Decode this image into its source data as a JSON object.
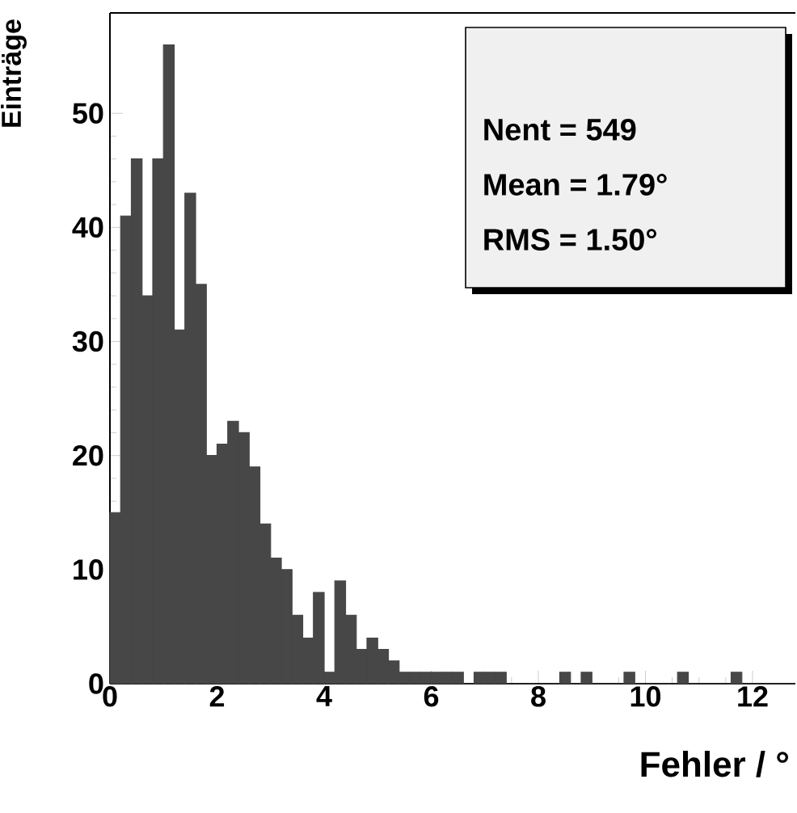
{
  "chart_data": {
    "type": "histogram",
    "xlabel": "Fehler / °",
    "ylabel": "Einträge",
    "bins": [
      0,
      0.2,
      0.4,
      0.6,
      0.8,
      1.0,
      1.2,
      1.4,
      1.6,
      1.8,
      2.0,
      2.2,
      2.4,
      2.6,
      2.8,
      3.0,
      3.2,
      3.4,
      3.6,
      3.8,
      4.0,
      4.2,
      4.4,
      4.6,
      4.8,
      5.0,
      5.2,
      5.4,
      5.6,
      5.8,
      6.0,
      6.2,
      6.4,
      6.6,
      6.8,
      7.0,
      7.2,
      7.4,
      7.6,
      7.8,
      8.0,
      8.2,
      8.4,
      8.6,
      8.8,
      9.0,
      9.2,
      9.4,
      9.6,
      9.8,
      10.0,
      10.2,
      10.4,
      10.6,
      10.8,
      11.0,
      11.2,
      11.4,
      11.6,
      11.8,
      12.0,
      12.2,
      12.4,
      12.6,
      12.8
    ],
    "values": [
      15,
      41,
      46,
      34,
      46,
      56,
      31,
      43,
      35,
      20,
      21,
      23,
      22,
      19,
      14,
      11,
      10,
      6,
      4,
      8,
      1,
      9,
      6,
      3,
      4,
      3,
      2,
      1,
      1,
      1,
      1,
      1,
      1,
      0,
      1,
      1,
      1,
      0,
      0,
      0,
      0,
      0,
      1,
      0,
      1,
      0,
      0,
      0,
      1,
      0,
      0,
      0,
      0,
      1,
      0,
      0,
      0,
      0,
      1,
      0,
      0,
      0,
      0,
      0
    ],
    "color": "#474747",
    "xlim": [
      0,
      12.8
    ],
    "ylim": [
      0,
      58.8
    ],
    "xticks": [
      0,
      2,
      4,
      6,
      8,
      10,
      12
    ],
    "yticks": [
      0,
      10,
      20,
      30,
      40,
      50
    ],
    "annotations": [
      "Nent = 549",
      "Mean  =  1.79°",
      "RMS   =  1.50°"
    ]
  }
}
